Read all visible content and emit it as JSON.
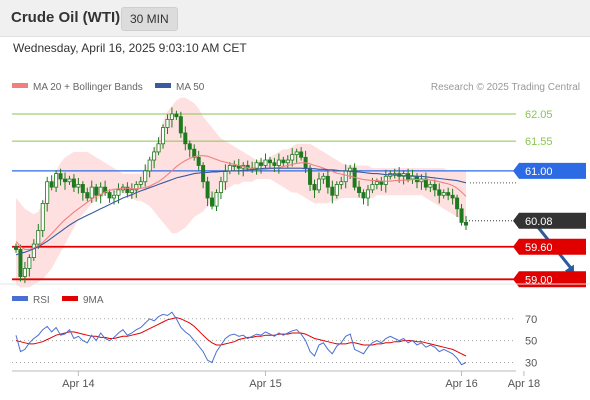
{
  "header": {
    "title": "Crude Oil (WTI)",
    "interval": "30 MIN",
    "datetime": "Wednesday, April 16, 2025 9:03:10 AM CET"
  },
  "colors": {
    "bollinger_fill": "#ffd6d6",
    "ma20": "#f08080",
    "ma50": "#3a5ba0",
    "candle": "#1f7a1f",
    "resistance": "#2d6be4",
    "support": "#e00000",
    "target_green": "#8ac452",
    "current_price": "#333333",
    "rsi": "#4a6fd4",
    "rsi_ma": "#e00000",
    "forecast_arrow": "#2c5aa0"
  },
  "chart_data": [
    {
      "type": "line",
      "title": "",
      "legend": [
        {
          "name": "MA 20 + Bollinger Bands",
          "color": "#f08080"
        },
        {
          "name": "MA 50",
          "color": "#3a5ba0"
        }
      ],
      "legend_placement": "top-left",
      "source": "Research © 2025 Trading Central",
      "ylim": [
        58.95,
        62.4
      ],
      "x_ticks": [
        {
          "label": "Apr 14",
          "index": 14
        },
        {
          "label": "Apr 15",
          "index": 56
        },
        {
          "label": "Apr 16",
          "index": 100
        },
        {
          "label": "Apr 18",
          "index": 114
        }
      ],
      "levels": [
        {
          "value": 62.05,
          "label": "62.05",
          "role": "target"
        },
        {
          "value": 61.55,
          "label": "61.55",
          "role": "target"
        },
        {
          "value": 61.0,
          "label": "61.00",
          "role": "resistance"
        },
        {
          "value": 60.08,
          "label": "60.08",
          "role": "current"
        },
        {
          "value": 59.6,
          "label": "59.60",
          "role": "support"
        },
        {
          "value": 59.0,
          "label": "59.00",
          "role": "support"
        }
      ],
      "forecast": {
        "from": [
          116,
          60.08
        ],
        "to": [
          125,
          59.05
        ]
      },
      "price_close": [
        59.55,
        59.05,
        59.2,
        59.4,
        59.65,
        59.9,
        60.4,
        60.8,
        60.7,
        60.95,
        60.85,
        60.8,
        60.85,
        60.7,
        60.75,
        60.6,
        60.5,
        60.7,
        60.55,
        60.7,
        60.6,
        60.5,
        60.55,
        60.65,
        60.7,
        60.6,
        60.65,
        60.75,
        60.8,
        61.0,
        61.2,
        61.35,
        61.5,
        61.8,
        61.95,
        62.05,
        62.0,
        61.7,
        61.5,
        61.4,
        61.25,
        61.1,
        60.8,
        60.5,
        60.35,
        60.6,
        60.8,
        61.0,
        61.1,
        61.1,
        61.05,
        61.1,
        61.05,
        61.05,
        61.15,
        61.1,
        61.2,
        61.15,
        61.1,
        61.2,
        61.15,
        61.2,
        61.3,
        61.35,
        61.25,
        61.05,
        60.75,
        60.65,
        60.85,
        60.9,
        60.7,
        60.55,
        60.75,
        60.8,
        61.0,
        61.05,
        60.7,
        60.6,
        60.5,
        60.65,
        60.75,
        60.8,
        60.75,
        60.9,
        60.95,
        60.95,
        60.9,
        60.95,
        60.85,
        60.9,
        60.8,
        60.85,
        60.7,
        60.75,
        60.65,
        60.55,
        60.6,
        60.55,
        60.5,
        60.3,
        60.05,
        60.0
      ],
      "ma20": [
        59.7,
        59.6,
        59.55,
        59.55,
        59.58,
        59.62,
        59.68,
        59.76,
        59.84,
        59.93,
        60.02,
        60.1,
        60.17,
        60.24,
        60.3,
        60.36,
        60.42,
        60.48,
        60.53,
        60.57,
        60.61,
        60.64,
        60.66,
        60.67,
        60.68,
        60.68,
        60.67,
        60.67,
        60.68,
        60.69,
        60.72,
        60.76,
        60.8,
        60.86,
        60.93,
        61.0,
        61.08,
        61.14,
        61.19,
        61.23,
        61.26,
        61.28,
        61.28,
        61.27,
        61.24,
        61.21,
        61.18,
        61.16,
        61.14,
        61.12,
        61.1,
        61.08,
        61.06,
        61.04,
        61.03,
        61.03,
        61.03,
        61.04,
        61.05,
        61.06,
        61.08,
        61.1,
        61.12,
        61.14,
        61.15,
        61.15,
        61.13,
        61.1,
        61.08,
        61.05,
        61.02,
        60.99,
        60.96,
        60.94,
        60.92,
        60.9,
        60.88,
        60.86,
        60.84,
        60.83,
        60.82,
        60.82,
        60.81,
        60.81,
        60.81,
        60.82,
        60.82,
        60.83,
        60.83,
        60.84,
        60.84,
        60.84,
        60.84,
        60.83,
        60.82,
        60.8,
        60.78,
        60.76,
        60.73,
        60.68,
        60.61,
        60.53
      ],
      "bb_upper": [
        60.5,
        60.4,
        60.3,
        60.25,
        60.2,
        60.25,
        60.4,
        60.6,
        60.8,
        61.0,
        61.15,
        61.25,
        61.3,
        61.35,
        61.35,
        61.35,
        61.35,
        61.3,
        61.25,
        61.2,
        61.15,
        61.1,
        61.05,
        61.0,
        60.95,
        60.95,
        60.95,
        60.95,
        60.95,
        61.05,
        61.2,
        61.4,
        61.6,
        61.9,
        62.1,
        62.2,
        62.3,
        62.35,
        62.35,
        62.3,
        62.25,
        62.15,
        62.0,
        61.9,
        61.8,
        61.7,
        61.6,
        61.55,
        61.5,
        61.45,
        61.4,
        61.35,
        61.3,
        61.25,
        61.2,
        61.2,
        61.2,
        61.25,
        61.3,
        61.35,
        61.4,
        61.4,
        61.45,
        61.5,
        61.5,
        61.5,
        61.5,
        61.45,
        61.4,
        61.35,
        61.3,
        61.25,
        61.2,
        61.15,
        61.1,
        61.1,
        61.1,
        61.1,
        61.1,
        61.1,
        61.05,
        61.05,
        61.05,
        61.05,
        61.05,
        61.05,
        61.05,
        61.05,
        61.05,
        61.05,
        61.05,
        61.05,
        61.05,
        61.05,
        61.05,
        61.05,
        61.05,
        61.0,
        61.0,
        61.0,
        61.0,
        61.0
      ],
      "bb_lower": [
        58.9,
        58.85,
        58.85,
        58.85,
        58.9,
        58.95,
        59.0,
        59.1,
        59.2,
        59.35,
        59.5,
        59.65,
        59.8,
        59.95,
        60.1,
        60.2,
        60.3,
        60.4,
        60.45,
        60.5,
        60.55,
        60.6,
        60.6,
        60.6,
        60.6,
        60.55,
        60.5,
        60.45,
        60.45,
        60.4,
        60.35,
        60.25,
        60.15,
        60.05,
        59.95,
        59.85,
        59.85,
        59.9,
        59.95,
        60.05,
        60.15,
        60.2,
        60.25,
        60.35,
        60.45,
        60.55,
        60.6,
        60.65,
        60.7,
        60.75,
        60.75,
        60.8,
        60.8,
        60.8,
        60.85,
        60.85,
        60.85,
        60.85,
        60.8,
        60.75,
        60.7,
        60.65,
        60.6,
        60.6,
        60.55,
        60.5,
        60.45,
        60.4,
        60.4,
        60.4,
        60.4,
        60.45,
        60.45,
        60.5,
        60.5,
        60.5,
        60.5,
        60.5,
        60.5,
        60.5,
        60.5,
        60.55,
        60.55,
        60.55,
        60.55,
        60.55,
        60.55,
        60.55,
        60.55,
        60.55,
        60.55,
        60.55,
        60.5,
        60.45,
        60.4,
        60.35,
        60.3,
        60.25,
        60.2,
        60.15,
        60.1,
        60.05
      ],
      "ma50": [
        59.45,
        59.48,
        59.5,
        59.53,
        59.56,
        59.6,
        59.65,
        59.7,
        59.76,
        59.82,
        59.88,
        59.94,
        60.0,
        60.05,
        60.1,
        60.14,
        60.18,
        60.22,
        60.26,
        60.3,
        60.34,
        60.38,
        60.42,
        60.46,
        60.5,
        60.53,
        60.56,
        60.6,
        60.63,
        60.66,
        60.69,
        60.72,
        60.75,
        60.78,
        60.81,
        60.84,
        60.87,
        60.89,
        60.91,
        60.93,
        60.95,
        60.96,
        60.97,
        60.97,
        60.98,
        60.98,
        60.99,
        60.99,
        61.0,
        61.0,
        61.0,
        61.01,
        61.02,
        61.02,
        61.03,
        61.04,
        61.05,
        61.05,
        61.05,
        61.05,
        61.05,
        61.05,
        61.05,
        61.05,
        61.05,
        61.04,
        61.04,
        61.04,
        61.03,
        61.03,
        61.02,
        61.02,
        61.01,
        61.0,
        61.0,
        60.99,
        60.98,
        60.98,
        60.97,
        60.96,
        60.95,
        60.95,
        60.94,
        60.93,
        60.93,
        60.92,
        60.92,
        60.91,
        60.91,
        60.91,
        60.9,
        60.9,
        60.89,
        60.88,
        60.87,
        60.86,
        60.85,
        60.84,
        60.83,
        60.82,
        60.8,
        60.78
      ]
    },
    {
      "type": "line",
      "title": "",
      "legend": [
        {
          "name": "RSI",
          "color": "#4a6fd4"
        },
        {
          "name": "9MA",
          "color": "#e00000"
        }
      ],
      "ylim": [
        25,
        78
      ],
      "y_ticks": [
        30,
        50,
        70
      ],
      "grid": true,
      "rsi": [
        55,
        40,
        42,
        48,
        52,
        55,
        60,
        63,
        58,
        62,
        55,
        56,
        60,
        52,
        54,
        50,
        48,
        55,
        50,
        57,
        52,
        50,
        53,
        57,
        60,
        55,
        57,
        60,
        62,
        66,
        70,
        68,
        72,
        74,
        73,
        76,
        70,
        62,
        58,
        55,
        50,
        45,
        40,
        32,
        30,
        40,
        46,
        52,
        55,
        56,
        54,
        55,
        52,
        54,
        56,
        55,
        58,
        56,
        54,
        57,
        55,
        57,
        59,
        60,
        56,
        50,
        40,
        36,
        46,
        48,
        42,
        38,
        45,
        48,
        54,
        56,
        42,
        40,
        38,
        44,
        48,
        50,
        48,
        52,
        54,
        52,
        50,
        52,
        48,
        50,
        46,
        48,
        44,
        46,
        44,
        40,
        42,
        40,
        38,
        34,
        28,
        30
      ],
      "rsi_ma": [
        50,
        49,
        48,
        47,
        47,
        48,
        49,
        51,
        53,
        55,
        56,
        57,
        58,
        58,
        57,
        56,
        55,
        54,
        54,
        53,
        53,
        52,
        52,
        53,
        54,
        54,
        55,
        56,
        57,
        59,
        61,
        63,
        65,
        67,
        69,
        70,
        71,
        70,
        68,
        66,
        63,
        59,
        55,
        51,
        48,
        46,
        46,
        47,
        48,
        49,
        51,
        52,
        53,
        53,
        54,
        54,
        55,
        55,
        55,
        56,
        56,
        56,
        57,
        57,
        57,
        56,
        54,
        52,
        51,
        50,
        49,
        48,
        47,
        47,
        47,
        48,
        48,
        47,
        46,
        46,
        46,
        47,
        47,
        48,
        48,
        49,
        49,
        50,
        50,
        50,
        49,
        49,
        48,
        47,
        46,
        45,
        44,
        43,
        42,
        40,
        38,
        36
      ]
    }
  ]
}
